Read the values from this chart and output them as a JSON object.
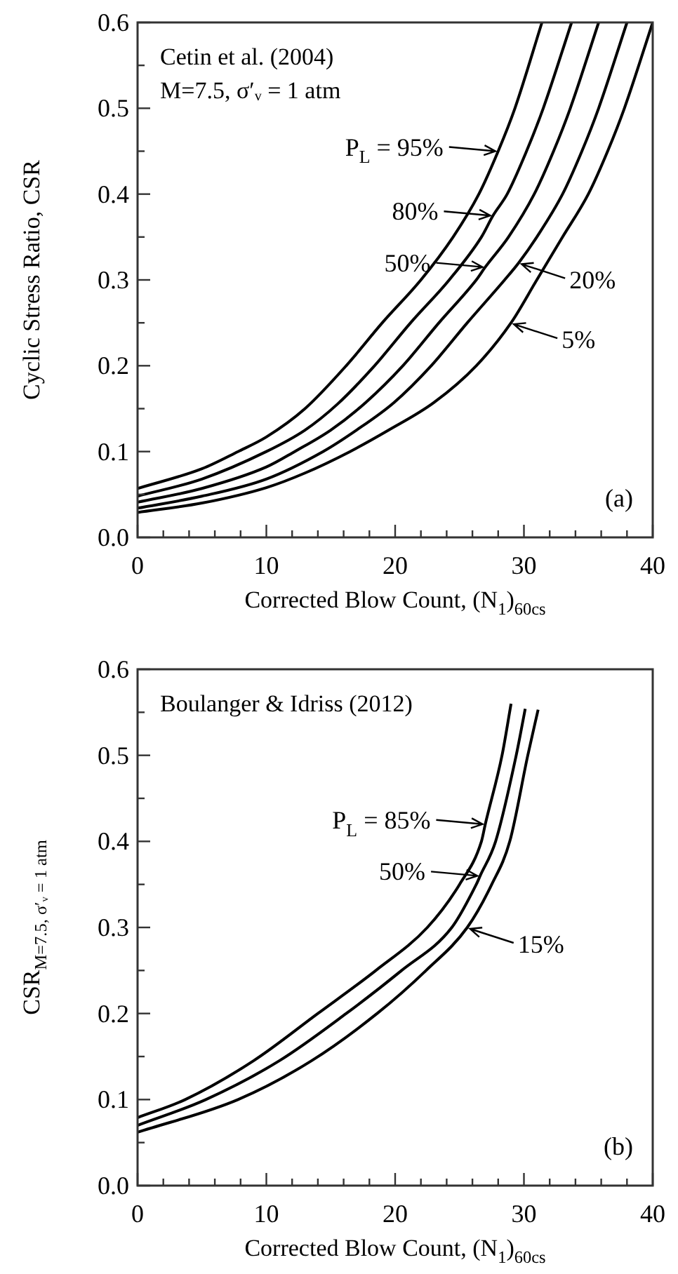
{
  "chart_data": [
    {
      "type": "line",
      "xlabel": "Corrected Blow Count, (N$_{1}$)$_{60cs}$",
      "ylabel": "Cyclic Stress Ratio, CSR",
      "series": [
        {
          "color": "#000000",
          "x": [
            0,
            5,
            7.8,
            10,
            13,
            16.2,
            19,
            22,
            24.5,
            26.5,
            28,
            29.3,
            31.4
          ],
          "values": [
            0.057,
            0.08,
            0.1,
            0.117,
            0.15,
            0.2,
            0.25,
            0.3,
            0.35,
            0.4,
            0.45,
            0.5,
            0.6
          ]
        },
        {
          "color": "#000000",
          "x": [
            0,
            5,
            10,
            13,
            15.5,
            18.4,
            21.2,
            24.2,
            26.7,
            27.6,
            28.7,
            30.2,
            31.5,
            33.7
          ],
          "values": [
            0.048,
            0.068,
            0.1,
            0.125,
            0.155,
            0.2,
            0.25,
            0.3,
            0.35,
            0.375,
            0.4,
            0.45,
            0.5,
            0.6
          ]
        },
        {
          "color": "#000000",
          "x": [
            0,
            5,
            10,
            12.2,
            15,
            17.7,
            20.6,
            23.4,
            26.3,
            27,
            28.8,
            30.8,
            32.3,
            33.6,
            35.8
          ],
          "values": [
            0.041,
            0.057,
            0.082,
            0.1,
            0.125,
            0.157,
            0.2,
            0.25,
            0.3,
            0.315,
            0.35,
            0.4,
            0.45,
            0.5,
            0.6
          ]
        },
        {
          "color": "#000000",
          "x": [
            0,
            5,
            10,
            14.4,
            17,
            19.9,
            22.8,
            25.6,
            28.5,
            29.6,
            31,
            33,
            34.5,
            35.8,
            38
          ],
          "values": [
            0.034,
            0.048,
            0.068,
            0.1,
            0.125,
            0.157,
            0.2,
            0.25,
            0.3,
            0.32,
            0.35,
            0.4,
            0.45,
            0.5,
            0.6
          ]
        },
        {
          "color": "#000000",
          "x": [
            0,
            5,
            10,
            13,
            16.5,
            19.5,
            23,
            26.3,
            29,
            31,
            33,
            35,
            36.5,
            37.8,
            40
          ],
          "values": [
            0.029,
            0.04,
            0.058,
            0.075,
            0.1,
            0.125,
            0.157,
            0.2,
            0.25,
            0.3,
            0.35,
            0.4,
            0.45,
            0.5,
            0.6
          ]
        }
      ],
      "xlim": [
        0,
        40
      ],
      "xticks": [
        0,
        {
          "value": 2,
          "label": null
        },
        {
          "value": 4,
          "label": null
        },
        {
          "value": 6,
          "label": null
        },
        {
          "value": 8,
          "label": null
        },
        10,
        {
          "value": 12,
          "label": null
        },
        {
          "value": 14,
          "label": null
        },
        {
          "value": 16,
          "label": null
        },
        {
          "value": 18,
          "label": null
        },
        20,
        {
          "value": 22,
          "label": null
        },
        {
          "value": 24,
          "label": null
        },
        {
          "value": 26,
          "label": null
        },
        {
          "value": 28,
          "label": null
        },
        30,
        {
          "value": 32,
          "label": null
        },
        {
          "value": 34,
          "label": null
        },
        {
          "value": 36,
          "label": null
        },
        {
          "value": 38,
          "label": null
        },
        40
      ],
      "ylim": [
        0,
        0.6
      ],
      "yticks": [
        {
          "value": 0,
          "label": "0.0"
        },
        {
          "value": 0.05,
          "label": null
        },
        0.1,
        {
          "value": 0.15,
          "label": null
        },
        0.2,
        {
          "value": 0.25,
          "label": null
        },
        0.3,
        {
          "value": 0.35,
          "label": null
        },
        0.4,
        {
          "value": 0.45,
          "label": null
        },
        0.5,
        {
          "value": 0.55,
          "label": null
        },
        0.6
      ],
      "annotations": [
        "Cetin et al. (2004)",
        "M=7.5, σ′ᵥ = 1 atm",
        {
          "text": "P$_{L}$ = 95%",
          "x": 28,
          "y": 0.45
        },
        {
          "text": "80%",
          "x": 27.6,
          "y": 0.375
        },
        {
          "text": "50%",
          "x": 27,
          "y": 0.315
        },
        {
          "text": "20%",
          "x": 29.6,
          "y": 0.32
        },
        {
          "text": "5%",
          "x": 29,
          "y": 0.25
        },
        "(a)"
      ],
      "grid": false,
      "legend": false
    },
    {
      "type": "line",
      "xlabel": "Corrected Blow Count, (N$_{1}$)$_{60cs}$",
      "ylabel": "CSR$_{M=7.5, σ′ᵥ = 1 atm}$",
      "series": [
        {
          "color": "#000000",
          "x": [
            0,
            3.7,
            9,
            14,
            18.5,
            22.5,
            25,
            26.7,
            27,
            28.3,
            29
          ],
          "values": [
            0.079,
            0.1,
            0.145,
            0.2,
            0.25,
            0.3,
            0.35,
            0.4,
            0.42,
            0.5,
            0.56
          ]
        },
        {
          "color": "#000000",
          "x": [
            0,
            5.3,
            11,
            16.2,
            20.5,
            24.4,
            26.3,
            26.6,
            27.8,
            29.4,
            30.1
          ],
          "values": [
            0.07,
            0.1,
            0.145,
            0.2,
            0.25,
            0.3,
            0.35,
            0.36,
            0.4,
            0.5,
            0.554
          ]
        },
        {
          "color": "#000000",
          "x": [
            0,
            7.8,
            13.5,
            18.6,
            22.4,
            25.6,
            27.5,
            28.9,
            30.3,
            31.1
          ],
          "values": [
            0.062,
            0.1,
            0.145,
            0.2,
            0.25,
            0.3,
            0.35,
            0.4,
            0.5,
            0.553
          ]
        }
      ],
      "xlim": [
        0,
        40
      ],
      "xticks": [
        0,
        {
          "value": 2,
          "label": null
        },
        {
          "value": 4,
          "label": null
        },
        {
          "value": 6,
          "label": null
        },
        {
          "value": 8,
          "label": null
        },
        10,
        {
          "value": 12,
          "label": null
        },
        {
          "value": 14,
          "label": null
        },
        {
          "value": 16,
          "label": null
        },
        {
          "value": 18,
          "label": null
        },
        20,
        {
          "value": 22,
          "label": null
        },
        {
          "value": 24,
          "label": null
        },
        {
          "value": 26,
          "label": null
        },
        {
          "value": 28,
          "label": null
        },
        30,
        {
          "value": 32,
          "label": null
        },
        {
          "value": 34,
          "label": null
        },
        {
          "value": 36,
          "label": null
        },
        {
          "value": 38,
          "label": null
        },
        40
      ],
      "ylim": [
        0,
        0.6
      ],
      "yticks": [
        {
          "value": 0,
          "label": "0.0"
        },
        {
          "value": 0.05,
          "label": null
        },
        0.1,
        {
          "value": 0.15,
          "label": null
        },
        0.2,
        {
          "value": 0.25,
          "label": null
        },
        0.3,
        {
          "value": 0.35,
          "label": null
        },
        0.4,
        {
          "value": 0.45,
          "label": null
        },
        0.5,
        {
          "value": 0.55,
          "label": null
        },
        0.6
      ],
      "annotations": [
        "Boulanger & Idriss (2012)",
        {
          "text": "P$_{L}$ = 85%",
          "x": 27,
          "y": 0.42
        },
        {
          "text": "50%",
          "x": 26.6,
          "y": 0.36
        },
        {
          "text": "15%",
          "x": 25.6,
          "y": 0.3
        },
        "(b)"
      ],
      "grid": false,
      "legend": false
    }
  ]
}
